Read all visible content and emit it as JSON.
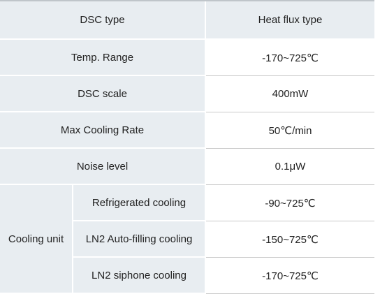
{
  "table": {
    "rows": [
      {
        "label": "DSC type",
        "value": "Heat flux type"
      },
      {
        "label": "Temp. Range",
        "value": "-170~725℃"
      },
      {
        "label": "DSC scale",
        "value": "400mW"
      },
      {
        "label": "Max Cooling Rate",
        "value": "50℃/min"
      },
      {
        "label": "Noise level",
        "value": "0.1μW"
      }
    ],
    "group": {
      "label": "Cooling unit",
      "rows": [
        {
          "label": "Refrigerated cooling",
          "value": "-90~725℃"
        },
        {
          "label": "LN2 Auto-filling cooling",
          "value": "-150~725℃"
        },
        {
          "label": "LN2 siphone cooling",
          "value": "-170~725℃"
        }
      ]
    }
  }
}
